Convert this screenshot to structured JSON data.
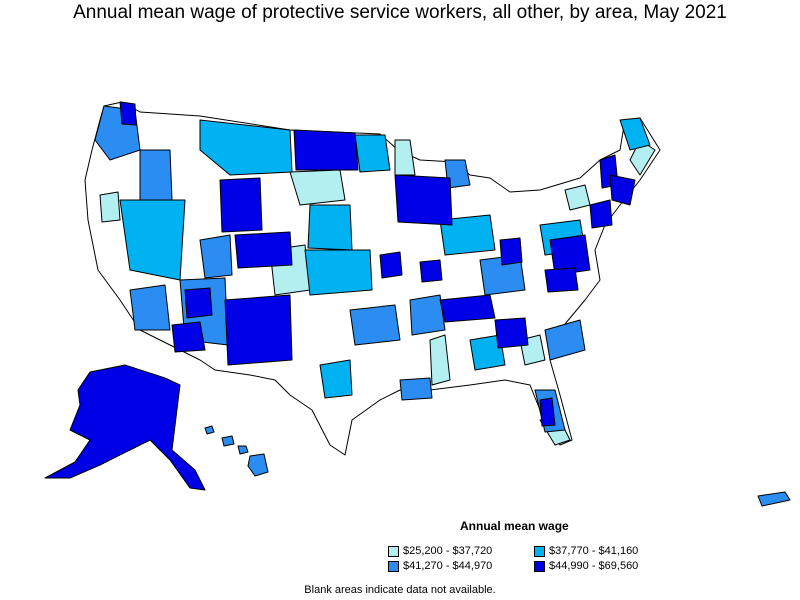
{
  "title": "Annual mean wage of protective service workers, all other, by area, May 2021",
  "legend": {
    "title": "Annual mean wage",
    "items": [
      {
        "label": "$25,200 - $37,720",
        "color": "#b3eef0"
      },
      {
        "label": "$37,770 - $41,160",
        "color": "#00b2f2"
      },
      {
        "label": "$41,270 - $44,970",
        "color": "#2b8cf2"
      },
      {
        "label": "$44,990 - $69,560",
        "color": "#0000e6"
      }
    ]
  },
  "note": "Blank areas indicate data not available.",
  "colors": {
    "outline": "#000000",
    "no_data": "#ffffff"
  }
}
